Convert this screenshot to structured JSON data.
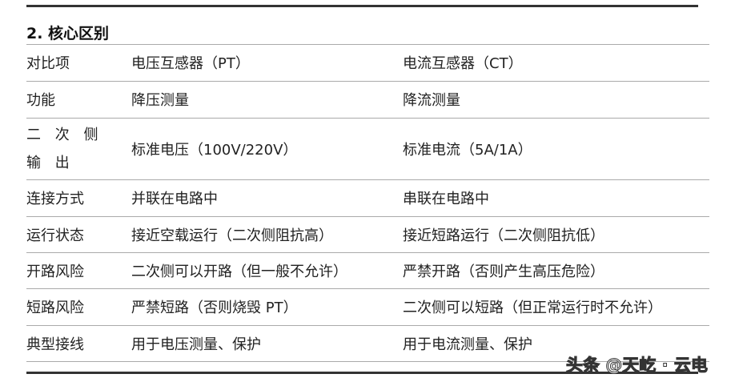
{
  "title": "2. 核心区别",
  "rows": [
    [
      "对比项",
      "电压互感器（PT）",
      "电流互感器（CT）"
    ],
    [
      "功能",
      "降压测量",
      "降流测量"
    ],
    [
      "二 次 侧 输 出",
      "标准电压（100V/220V）",
      "标准电流（5A/1A）"
    ],
    [
      "连接方式",
      "并联在电路中",
      "串联在电路中"
    ],
    [
      "运行状态",
      "接近空载运行（二次侧阻抗高）",
      "接近短路运行（二次侧阻抗低）"
    ],
    [
      "开路风险",
      "二次侧可以开路（但一般不允许）",
      "严禁开路（否则产生高压危险）"
    ],
    [
      "短路风险",
      "严禁短路（否则烧毁 PT）",
      "二次侧可以短路（但正常运行时不允许）"
    ],
    [
      "典型接线",
      "用于电压测量、保护",
      "用于电流测量、保护"
    ]
  ],
  "watermark": "头条 @天屹 · 云电"
}
